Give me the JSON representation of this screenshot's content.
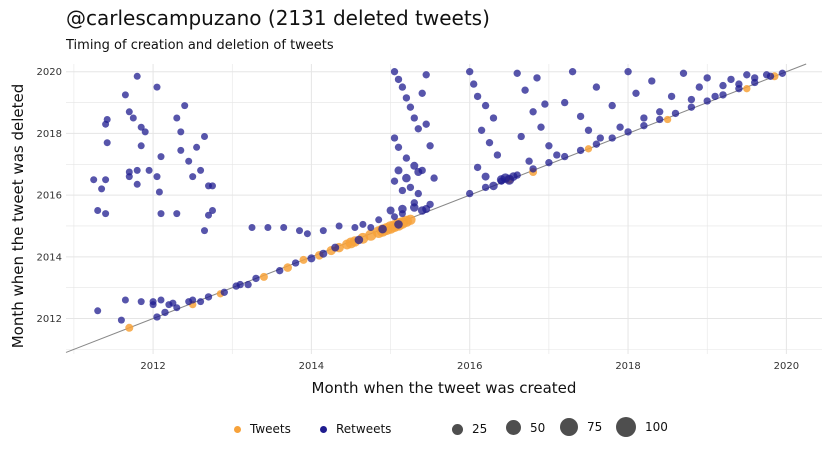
{
  "chart_data": {
    "type": "scatter",
    "title": "@carlescampuzano (2131 deleted tweets)",
    "subtitle": "Timing of creation and deletion of tweets",
    "xlabel": "Month when the tweet was created",
    "ylabel": "Month when the tweet was deleted",
    "xlim": [
      2010.9,
      2020.45
    ],
    "ylim": [
      2010.85,
      2020.25
    ],
    "x_ticks": [
      "2012",
      "2014",
      "2016",
      "2018",
      "2020"
    ],
    "y_ticks": [
      "2012",
      "2014",
      "2016",
      "2018",
      "2020"
    ],
    "grid": true,
    "reference_line": "y = x",
    "legend_position": "bottom",
    "size_legend": [
      25,
      50,
      75,
      100
    ],
    "colors": {
      "Tweets": "#f7a23a",
      "Retweets": "#1f1c8f",
      "reference_line": "#888888",
      "grid": "#e5e5e5"
    },
    "series": [
      {
        "name": "Tweets",
        "points": [
          [
            2011.7,
            2011.7,
            8
          ],
          [
            2012.5,
            2012.45,
            6
          ],
          [
            2012.85,
            2012.8,
            6
          ],
          [
            2013.4,
            2013.35,
            8
          ],
          [
            2013.7,
            2013.65,
            10
          ],
          [
            2013.9,
            2013.9,
            8
          ],
          [
            2014.1,
            2014.05,
            10
          ],
          [
            2014.25,
            2014.2,
            12
          ],
          [
            2014.35,
            2014.3,
            14
          ],
          [
            2014.45,
            2014.4,
            16
          ],
          [
            2014.55,
            2014.5,
            18
          ],
          [
            2014.65,
            2014.6,
            20
          ],
          [
            2014.75,
            2014.7,
            22
          ],
          [
            2014.85,
            2014.8,
            25
          ],
          [
            2014.9,
            2014.85,
            28
          ],
          [
            2015.0,
            2014.95,
            30
          ],
          [
            2015.05,
            2015.0,
            26
          ],
          [
            2015.1,
            2015.05,
            30
          ],
          [
            2015.15,
            2015.1,
            24
          ],
          [
            2015.2,
            2015.15,
            22
          ],
          [
            2014.5,
            2014.45,
            20
          ],
          [
            2014.95,
            2014.9,
            26
          ],
          [
            2015.25,
            2015.2,
            18
          ],
          [
            2016.5,
            2016.5,
            8
          ],
          [
            2016.8,
            2016.75,
            8
          ],
          [
            2017.5,
            2017.5,
            6
          ],
          [
            2018.5,
            2018.45,
            6
          ],
          [
            2019.5,
            2019.45,
            6
          ],
          [
            2019.85,
            2019.85,
            8
          ]
        ]
      },
      {
        "name": "Retweets",
        "points": [
          [
            2011.3,
            2012.25,
            5
          ],
          [
            2011.6,
            2011.95,
            5
          ],
          [
            2011.65,
            2012.6,
            5
          ],
          [
            2011.85,
            2012.55,
            5
          ],
          [
            2012.0,
            2012.45,
            5
          ],
          [
            2012.0,
            2012.55,
            5
          ],
          [
            2012.05,
            2012.05,
            6
          ],
          [
            2012.1,
            2012.6,
            5
          ],
          [
            2012.15,
            2012.2,
            6
          ],
          [
            2012.2,
            2012.45,
            5
          ],
          [
            2012.25,
            2012.5,
            5
          ],
          [
            2012.3,
            2012.35,
            5
          ],
          [
            2012.45,
            2012.55,
            5
          ],
          [
            2012.5,
            2012.6,
            5
          ],
          [
            2012.6,
            2012.55,
            5
          ],
          [
            2012.7,
            2012.7,
            6
          ],
          [
            2012.9,
            2012.85,
            6
          ],
          [
            2013.05,
            2013.05,
            6
          ],
          [
            2013.1,
            2013.1,
            6
          ],
          [
            2013.2,
            2013.1,
            6
          ],
          [
            2013.3,
            2013.3,
            6
          ],
          [
            2013.6,
            2013.55,
            6
          ],
          [
            2013.8,
            2013.8,
            6
          ],
          [
            2014.0,
            2013.95,
            8
          ],
          [
            2014.15,
            2014.1,
            8
          ],
          [
            2014.3,
            2014.3,
            8
          ],
          [
            2014.6,
            2014.55,
            10
          ],
          [
            2014.9,
            2014.9,
            10
          ],
          [
            2015.1,
            2015.05,
            10
          ],
          [
            2011.25,
            2016.5,
            5
          ],
          [
            2011.3,
            2015.5,
            5
          ],
          [
            2011.35,
            2016.2,
            5
          ],
          [
            2011.4,
            2018.3,
            5
          ],
          [
            2011.42,
            2018.45,
            5
          ],
          [
            2011.42,
            2017.7,
            5
          ],
          [
            2011.4,
            2016.5,
            5
          ],
          [
            2011.4,
            2015.4,
            5
          ],
          [
            2011.65,
            2019.25,
            5
          ],
          [
            2011.7,
            2018.7,
            5
          ],
          [
            2011.8,
            2019.85,
            5
          ],
          [
            2011.85,
            2017.6,
            5
          ],
          [
            2011.9,
            2018.05,
            5
          ],
          [
            2011.95,
            2016.8,
            5
          ],
          [
            2011.75,
            2018.5,
            5
          ],
          [
            2011.7,
            2016.6,
            5
          ],
          [
            2011.8,
            2016.35,
            5
          ],
          [
            2011.8,
            2016.8,
            5
          ],
          [
            2011.85,
            2018.2,
            5
          ],
          [
            2011.7,
            2016.75,
            5
          ],
          [
            2012.05,
            2019.5,
            5
          ],
          [
            2012.1,
            2017.25,
            5
          ],
          [
            2012.1,
            2015.4,
            5
          ],
          [
            2012.08,
            2016.1,
            5
          ],
          [
            2012.05,
            2016.6,
            5
          ],
          [
            2012.3,
            2018.5,
            5
          ],
          [
            2012.35,
            2018.05,
            5
          ],
          [
            2012.35,
            2017.45,
            5
          ],
          [
            2012.3,
            2015.4,
            5
          ],
          [
            2012.4,
            2018.9,
            5
          ],
          [
            2012.45,
            2017.1,
            5
          ],
          [
            2012.5,
            2016.6,
            5
          ],
          [
            2012.55,
            2017.55,
            5
          ],
          [
            2012.6,
            2016.8,
            5
          ],
          [
            2012.65,
            2017.9,
            5
          ],
          [
            2012.7,
            2016.3,
            5
          ],
          [
            2012.7,
            2015.35,
            5
          ],
          [
            2012.75,
            2015.5,
            5
          ],
          [
            2012.75,
            2016.3,
            5
          ],
          [
            2012.65,
            2014.85,
            5
          ],
          [
            2013.25,
            2014.95,
            5
          ],
          [
            2013.45,
            2014.95,
            5
          ],
          [
            2013.65,
            2014.95,
            5
          ],
          [
            2013.85,
            2014.85,
            5
          ],
          [
            2013.95,
            2014.75,
            5
          ],
          [
            2014.15,
            2014.85,
            5
          ],
          [
            2014.35,
            2015.0,
            5
          ],
          [
            2014.55,
            2014.95,
            5
          ],
          [
            2014.65,
            2015.05,
            5
          ],
          [
            2014.75,
            2014.95,
            5
          ],
          [
            2014.85,
            2015.2,
            5
          ],
          [
            2015.05,
            2015.3,
            5
          ],
          [
            2015.15,
            2015.4,
            5
          ],
          [
            2015.05,
            2020.0,
            6
          ],
          [
            2015.1,
            2019.75,
            6
          ],
          [
            2015.15,
            2019.5,
            6
          ],
          [
            2015.2,
            2019.15,
            6
          ],
          [
            2015.25,
            2018.85,
            6
          ],
          [
            2015.3,
            2018.5,
            6
          ],
          [
            2015.35,
            2018.15,
            6
          ],
          [
            2015.05,
            2017.85,
            6
          ],
          [
            2015.1,
            2017.55,
            6
          ],
          [
            2015.2,
            2017.2,
            6
          ],
          [
            2015.3,
            2016.95,
            8
          ],
          [
            2015.35,
            2016.75,
            8
          ],
          [
            2015.2,
            2016.55,
            10
          ],
          [
            2015.1,
            2016.8,
            8
          ],
          [
            2015.05,
            2016.45,
            6
          ],
          [
            2015.25,
            2016.25,
            6
          ],
          [
            2015.35,
            2016.05,
            6
          ],
          [
            2015.3,
            2015.6,
            10
          ],
          [
            2015.15,
            2015.55,
            10
          ],
          [
            2015.0,
            2015.5,
            8
          ],
          [
            2015.4,
            2015.5,
            10
          ],
          [
            2015.45,
            2015.55,
            8
          ],
          [
            2015.4,
            2016.8,
            6
          ],
          [
            2015.45,
            2019.9,
            6
          ],
          [
            2015.4,
            2019.3,
            6
          ],
          [
            2015.45,
            2018.3,
            6
          ],
          [
            2015.5,
            2017.6,
            6
          ],
          [
            2015.5,
            2015.7,
            6
          ],
          [
            2015.55,
            2016.55,
            6
          ],
          [
            2015.3,
            2015.75,
            6
          ],
          [
            2015.15,
            2016.15,
            6
          ],
          [
            2016.0,
            2020.0,
            6
          ],
          [
            2016.05,
            2019.6,
            6
          ],
          [
            2016.1,
            2019.2,
            6
          ],
          [
            2016.2,
            2018.9,
            6
          ],
          [
            2016.3,
            2018.5,
            6
          ],
          [
            2016.15,
            2018.1,
            6
          ],
          [
            2016.25,
            2017.7,
            6
          ],
          [
            2016.35,
            2017.3,
            6
          ],
          [
            2016.1,
            2016.9,
            6
          ],
          [
            2016.2,
            2016.6,
            8
          ],
          [
            2016.3,
            2016.3,
            10
          ],
          [
            2016.4,
            2016.5,
            12
          ],
          [
            2016.45,
            2016.55,
            14
          ],
          [
            2016.5,
            2016.5,
            16
          ],
          [
            2016.55,
            2016.6,
            10
          ],
          [
            2016.6,
            2019.95,
            6
          ],
          [
            2016.7,
            2019.4,
            6
          ],
          [
            2016.8,
            2018.7,
            6
          ],
          [
            2016.9,
            2018.2,
            6
          ],
          [
            2017.0,
            2017.6,
            6
          ],
          [
            2016.65,
            2017.9,
            6
          ],
          [
            2016.75,
            2017.1,
            6
          ],
          [
            2016.85,
            2019.8,
            6
          ],
          [
            2016.95,
            2018.95,
            6
          ],
          [
            2017.1,
            2017.3,
            6
          ],
          [
            2017.2,
            2019.0,
            6
          ],
          [
            2017.3,
            2020.0,
            6
          ],
          [
            2017.4,
            2018.55,
            6
          ],
          [
            2017.5,
            2018.1,
            6
          ],
          [
            2017.6,
            2019.5,
            6
          ],
          [
            2017.65,
            2017.85,
            6
          ],
          [
            2017.8,
            2018.9,
            6
          ],
          [
            2017.9,
            2018.2,
            6
          ],
          [
            2018.0,
            2020.0,
            6
          ],
          [
            2018.1,
            2019.3,
            6
          ],
          [
            2018.2,
            2018.5,
            6
          ],
          [
            2018.3,
            2019.7,
            6
          ],
          [
            2018.4,
            2018.7,
            6
          ],
          [
            2018.55,
            2019.2,
            6
          ],
          [
            2018.7,
            2019.95,
            6
          ],
          [
            2018.8,
            2019.1,
            6
          ],
          [
            2018.9,
            2019.5,
            6
          ],
          [
            2019.0,
            2019.8,
            6
          ],
          [
            2019.1,
            2019.2,
            6
          ],
          [
            2019.2,
            2019.55,
            6
          ],
          [
            2019.3,
            2019.75,
            6
          ],
          [
            2019.4,
            2019.6,
            6
          ],
          [
            2019.5,
            2019.9,
            6
          ],
          [
            2019.6,
            2019.8,
            6
          ],
          [
            2019.75,
            2019.9,
            6
          ],
          [
            2016.0,
            2016.05,
            6
          ],
          [
            2016.2,
            2016.25,
            6
          ],
          [
            2016.4,
            2016.45,
            6
          ],
          [
            2016.6,
            2016.65,
            6
          ],
          [
            2016.8,
            2016.85,
            6
          ],
          [
            2017.0,
            2017.05,
            6
          ],
          [
            2017.2,
            2017.25,
            6
          ],
          [
            2017.4,
            2017.45,
            6
          ],
          [
            2017.6,
            2017.65,
            6
          ],
          [
            2017.8,
            2017.85,
            6
          ],
          [
            2018.0,
            2018.05,
            6
          ],
          [
            2018.2,
            2018.25,
            6
          ],
          [
            2018.4,
            2018.45,
            6
          ],
          [
            2018.6,
            2018.65,
            6
          ],
          [
            2018.8,
            2018.85,
            6
          ],
          [
            2019.0,
            2019.05,
            6
          ],
          [
            2019.2,
            2019.25,
            6
          ],
          [
            2019.4,
            2019.45,
            6
          ],
          [
            2019.6,
            2019.65,
            6
          ],
          [
            2019.8,
            2019.85,
            6
          ],
          [
            2019.95,
            2019.95,
            6
          ]
        ]
      }
    ]
  },
  "legend": {
    "series": [
      {
        "label": "Tweets",
        "color": "#f7a23a"
      },
      {
        "label": "Retweets",
        "color": "#1f1c8f"
      }
    ],
    "sizes": [
      "25",
      "50",
      "75",
      "100"
    ]
  }
}
